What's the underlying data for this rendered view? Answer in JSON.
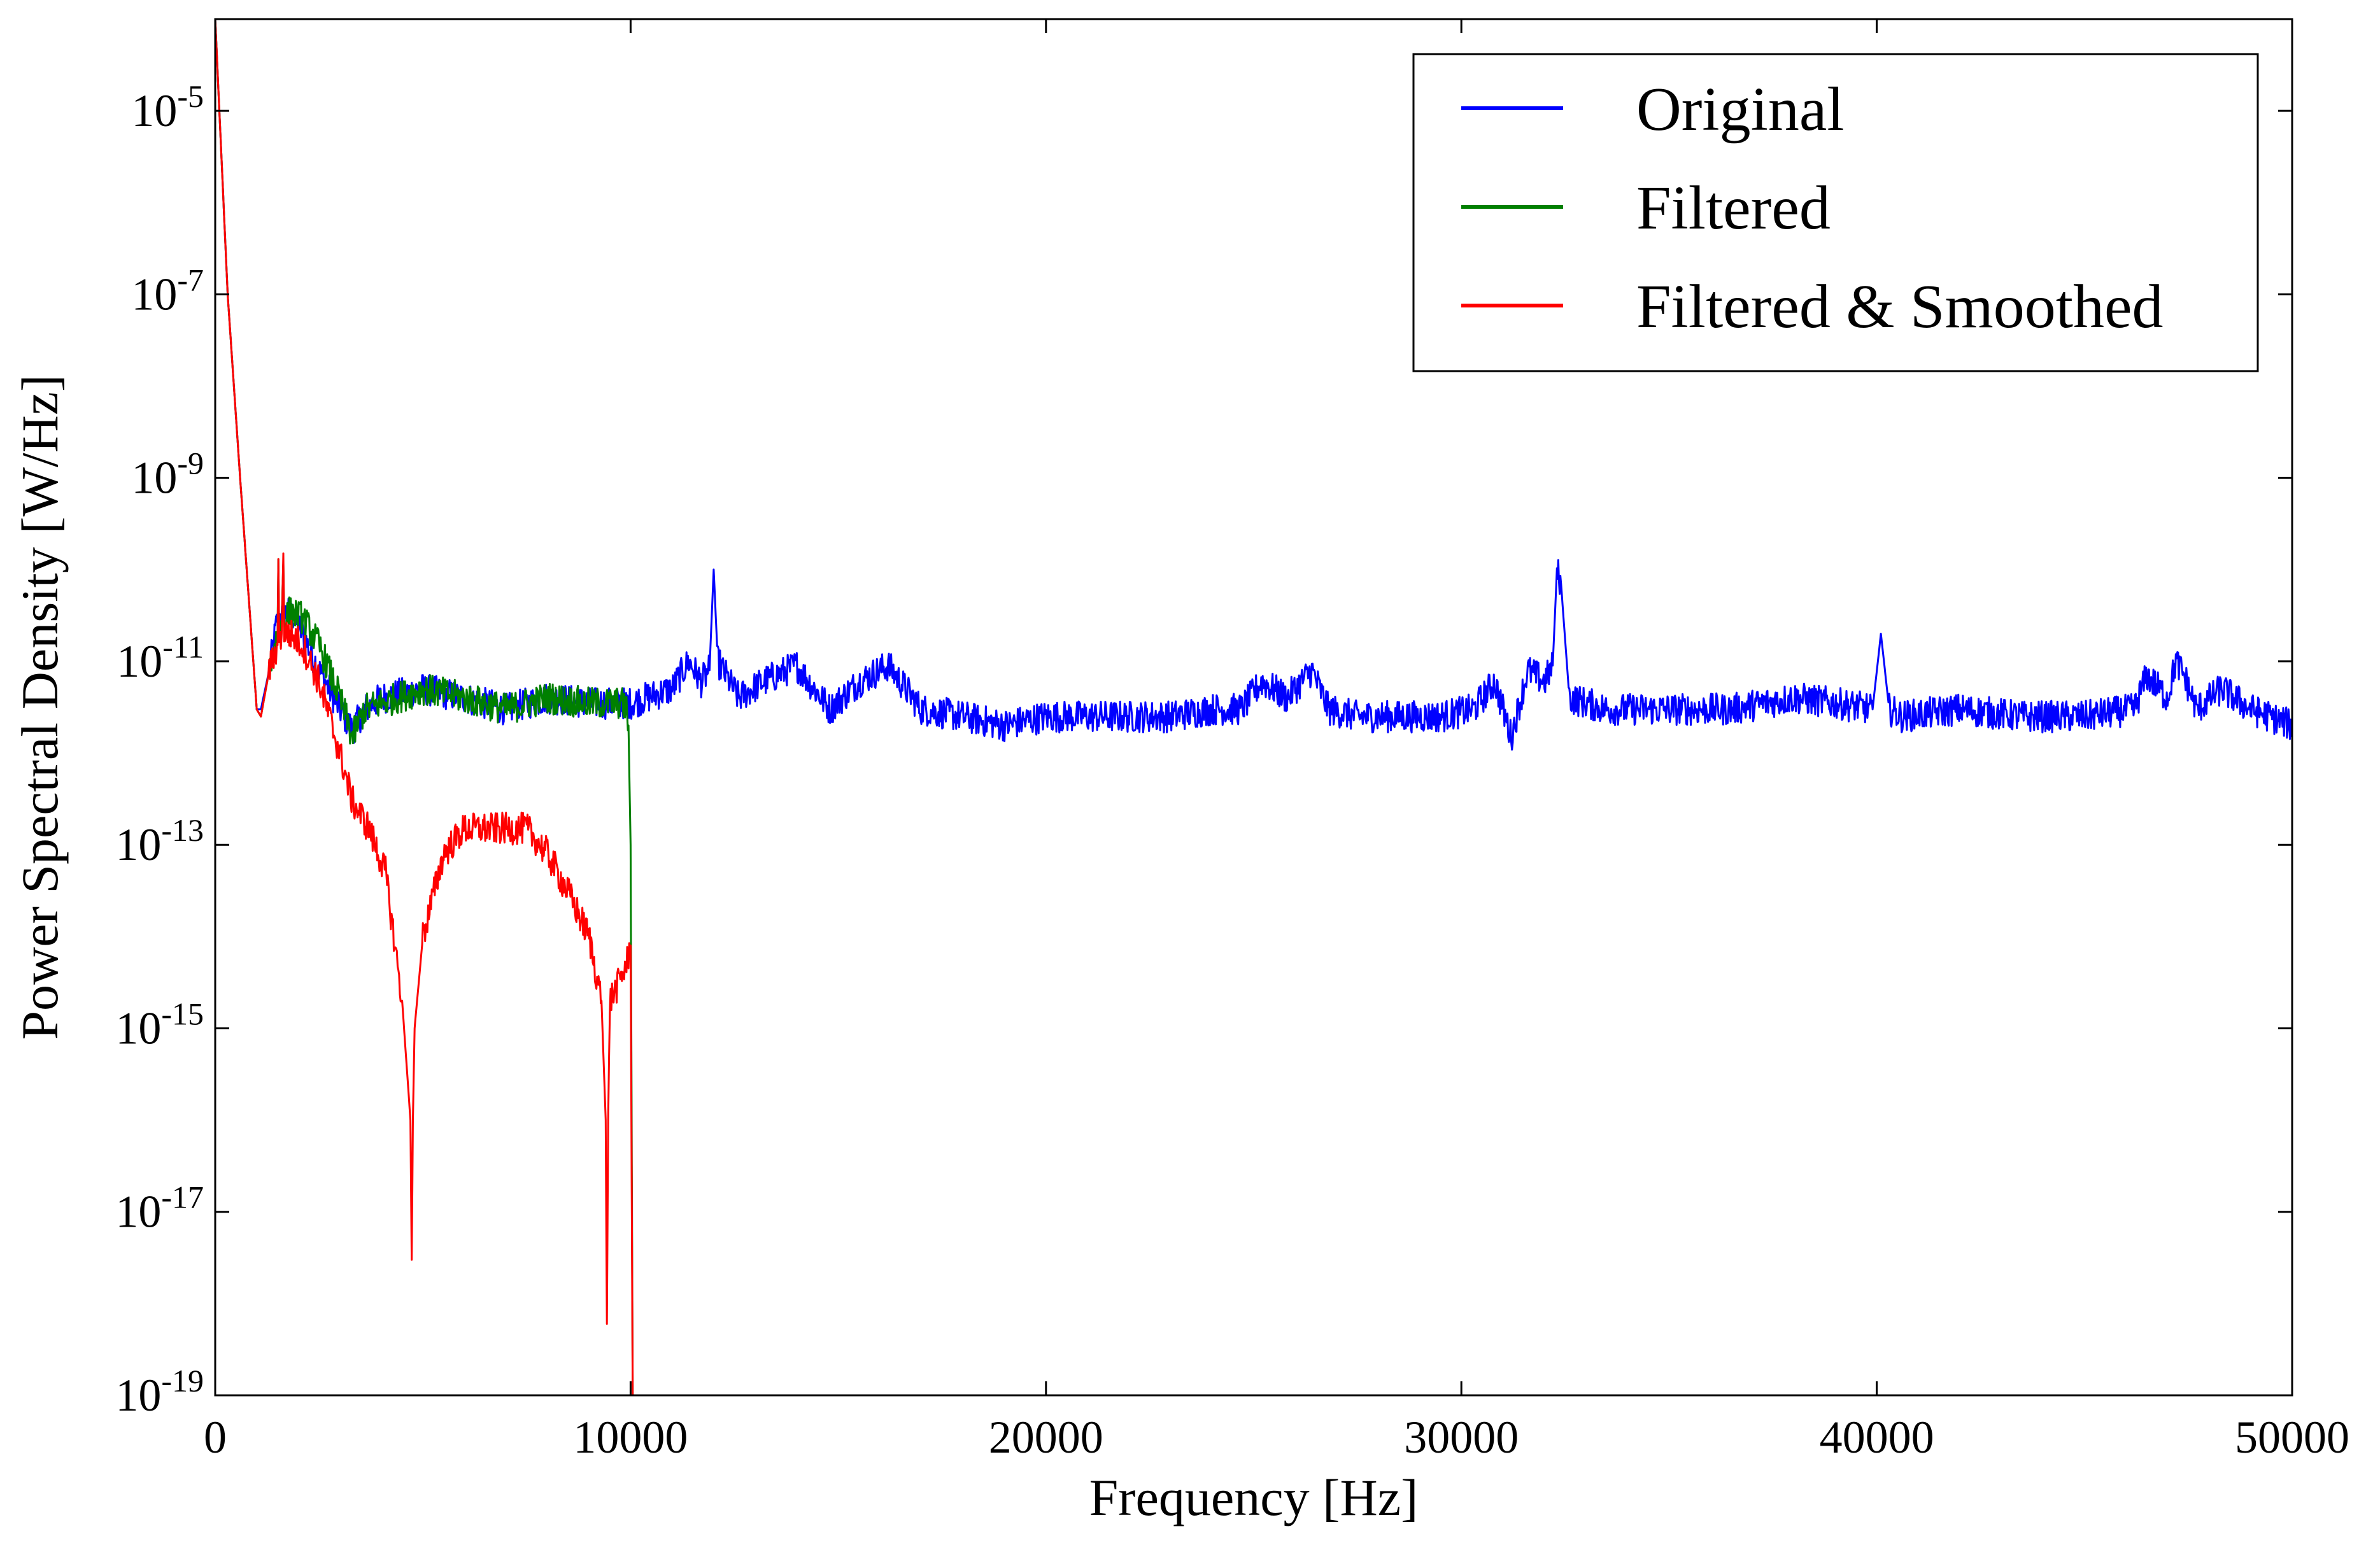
{
  "chart_data": {
    "type": "line",
    "title": "",
    "xlabel": "Frequency [Hz]",
    "ylabel": "Power Spectral Density [W/Hz]",
    "xlim": [
      0,
      50000
    ],
    "ylim": [
      1e-19,
      0.0001
    ],
    "yscale": "log",
    "grid": false,
    "legend_position": "top-right",
    "x_ticks": [
      {
        "value": 0,
        "label": "0"
      },
      {
        "value": 10000,
        "label": "10000"
      },
      {
        "value": 20000,
        "label": "20000"
      },
      {
        "value": 30000,
        "label": "30000"
      },
      {
        "value": 40000,
        "label": "40000"
      },
      {
        "value": 50000,
        "label": "50000"
      }
    ],
    "y_ticks": [
      {
        "exp": -5,
        "base": "10",
        "sup": "-5"
      },
      {
        "exp": -7,
        "base": "10",
        "sup": "-7"
      },
      {
        "exp": -9,
        "base": "10",
        "sup": "-9"
      },
      {
        "exp": -11,
        "base": "10",
        "sup": "-11"
      },
      {
        "exp": -13,
        "base": "10",
        "sup": "-13"
      },
      {
        "exp": -15,
        "base": "10",
        "sup": "-15"
      },
      {
        "exp": -17,
        "base": "10",
        "sup": "-17"
      },
      {
        "exp": -19,
        "base": "10",
        "sup": "-19"
      }
    ],
    "series": [
      {
        "name": "Original",
        "color": "#0000ff",
        "x": [
          0,
          100,
          300,
          600,
          1000,
          1100,
          1300,
          1500,
          1800,
          2100,
          2500,
          3000,
          3300,
          3600,
          4000,
          5000,
          6000,
          7000,
          8000,
          9000,
          10000,
          11000,
          11400,
          11700,
          11900,
          12000,
          12100,
          12600,
          13200,
          14000,
          14800,
          15500,
          16200,
          17000,
          18000,
          19000,
          20000,
          21000,
          22000,
          23000,
          24000,
          24700,
          25200,
          25800,
          26400,
          26800,
          27500,
          28500,
          29500,
          30300,
          30800,
          31200,
          31600,
          32000,
          32200,
          32300,
          32400,
          32600,
          33500,
          35000,
          36500,
          38000,
          39000,
          39900,
          40100,
          40300,
          40600,
          42000,
          43500,
          45000,
          46200,
          46500,
          47000,
          47200,
          47400,
          47700,
          48300,
          49000,
          50000
        ],
        "y": [
          0.0001,
          1e-05,
          1e-07,
          1e-09,
          3e-12,
          3e-12,
          8e-12,
          3e-11,
          3.5e-11,
          2e-11,
          8e-12,
          3e-12,
          1.8e-12,
          3e-12,
          4e-12,
          5e-12,
          4e-12,
          3e-12,
          4e-12,
          3.5e-12,
          3.5e-12,
          5e-12,
          1e-11,
          6e-12,
          8e-12,
          1e-10,
          1e-11,
          4e-12,
          6e-12,
          9e-12,
          3e-12,
          6e-12,
          9e-12,
          3e-12,
          2.5e-12,
          2e-12,
          2.5e-12,
          2.5e-12,
          2.5e-12,
          2.5e-12,
          3e-12,
          3e-12,
          6e-12,
          4e-12,
          8e-12,
          3e-12,
          2.5e-12,
          2.5e-12,
          2.5e-12,
          3e-12,
          6e-12,
          1.5e-12,
          8e-12,
          6e-12,
          9e-12,
          1e-10,
          7e-11,
          4e-12,
          3e-12,
          3e-12,
          3e-12,
          4e-12,
          3.5e-12,
          3e-12,
          2e-11,
          3e-12,
          2.5e-12,
          3e-12,
          2.5e-12,
          2.5e-12,
          3e-12,
          7e-12,
          4e-12,
          1e-11,
          7e-12,
          3e-12,
          5e-12,
          3e-12,
          2e-12
        ]
      },
      {
        "name": "Filtered",
        "color": "#008000",
        "x": [
          0,
          100,
          300,
          600,
          1000,
          1100,
          1300,
          1500,
          1520,
          1540,
          1600,
          1640,
          1660,
          1700,
          1800,
          2100,
          2500,
          3000,
          3300,
          3600,
          4000,
          5000,
          6000,
          7000,
          8000,
          9000,
          9800,
          9900,
          9950,
          10000,
          10050
        ],
        "y": [
          0.0001,
          1e-05,
          1e-07,
          1e-09,
          3e-12,
          2.5e-12,
          8e-12,
          2e-11,
          1.3e-10,
          2e-11,
          2.5e-11,
          1.5e-10,
          3e-11,
          3e-11,
          3.5e-11,
          3e-11,
          1.5e-11,
          4e-12,
          1.5e-12,
          3e-12,
          3.5e-12,
          5e-12,
          4e-12,
          3e-12,
          4e-12,
          3.5e-12,
          3.5e-12,
          3e-12,
          2e-12,
          1e-13,
          1e-19
        ]
      },
      {
        "name": "Filtered & Smoothed",
        "color": "#ff0000",
        "x": [
          0,
          100,
          300,
          600,
          1000,
          1100,
          1300,
          1500,
          1520,
          1540,
          1600,
          1640,
          1660,
          1700,
          1800,
          2100,
          2500,
          3000,
          3300,
          3700,
          4100,
          4500,
          4700,
          4730,
          4760,
          4800,
          5000,
          5500,
          6000,
          6500,
          7000,
          7500,
          8000,
          8500,
          9000,
          9300,
          9400,
          9430,
          9460,
          9500,
          9700,
          9900,
          10000,
          10050
        ],
        "y": [
          0.0001,
          1e-05,
          1e-07,
          1e-09,
          3e-12,
          2.5e-12,
          8e-12,
          1.5e-11,
          1.3e-10,
          1.5e-11,
          2e-11,
          1.5e-10,
          2e-11,
          2e-11,
          2e-11,
          1.5e-11,
          6e-12,
          1e-12,
          3e-13,
          1.5e-13,
          5e-14,
          2e-15,
          1e-16,
          3e-18,
          1e-16,
          1e-15,
          1e-14,
          8e-14,
          1.5e-13,
          1.5e-13,
          1.5e-13,
          1.5e-13,
          8e-14,
          3e-14,
          1e-14,
          2e-15,
          1e-16,
          6e-19,
          1e-16,
          2e-15,
          3e-15,
          5e-15,
          8e-15,
          1e-19
        ]
      }
    ]
  }
}
